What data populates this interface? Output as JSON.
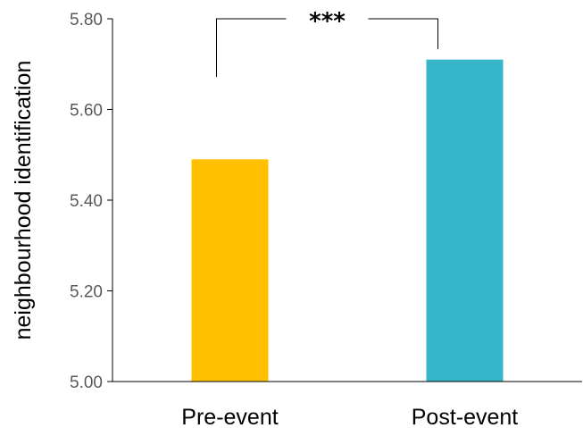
{
  "chart_data": {
    "type": "bar",
    "categories": [
      "Pre-event",
      "Post-event"
    ],
    "values": [
      5.49,
      5.71
    ],
    "colors": [
      "#FFC000",
      "#38B6C9"
    ],
    "ylabel": "neighbourhood identification",
    "xlabel": "",
    "ylim": [
      5.0,
      5.8
    ],
    "yticks": [
      "5.00",
      "5.20",
      "5.40",
      "5.60",
      "5.80"
    ],
    "grid": false,
    "annotation": {
      "type": "significance-bracket",
      "text": "***"
    }
  }
}
